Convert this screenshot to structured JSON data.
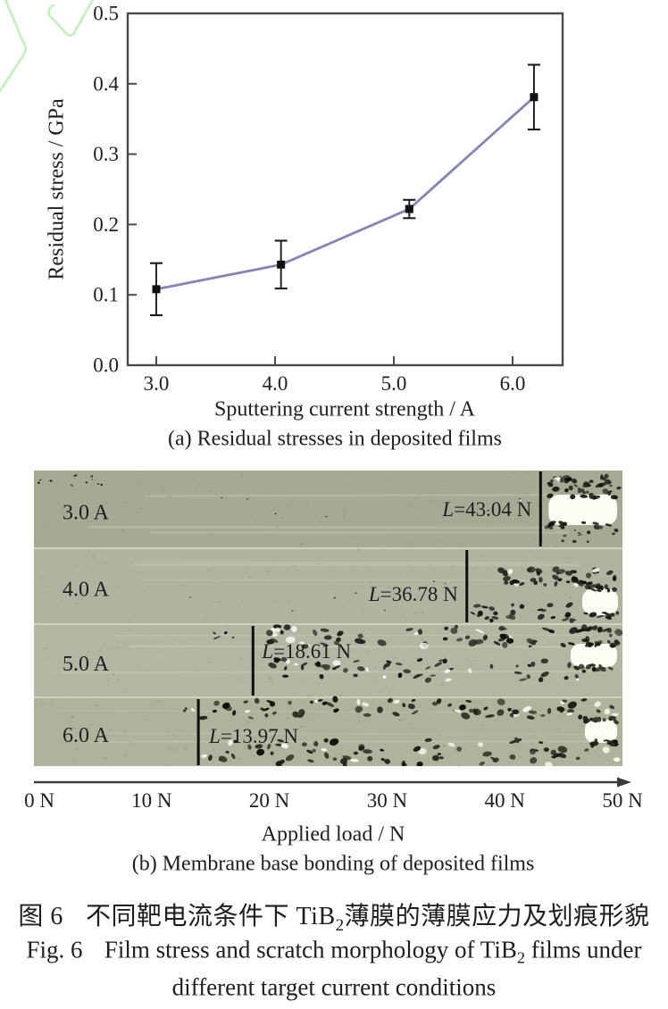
{
  "figure": {
    "watermark_color": "#c9efc3",
    "caption_cn": {
      "fig_label": "图 6",
      "before_sub": "不同靶电流条件下 TiB",
      "subscript": "2",
      "after_sub": "薄膜的薄膜应力及划痕形貌"
    },
    "caption_en": {
      "fig_label": "Fig. 6",
      "line1_before": "Film stress and scratch morphology of TiB",
      "subscript": "2",
      "line1_after": " films under",
      "line2": "different target current conditions"
    }
  },
  "chart_data": [
    {
      "type": "line",
      "title": "",
      "xlabel": "Sputtering current strength / A",
      "ylabel": "Residual stress / GPa",
      "caption": "(a) Residual stresses in deposited films",
      "x_ticks": [
        3.0,
        4.0,
        5.0,
        6.0
      ],
      "y_ticks": [
        0.0,
        0.1,
        0.2,
        0.3,
        0.4,
        0.5
      ],
      "xlim": [
        2.76,
        6.42
      ],
      "ylim": [
        0.0,
        0.5
      ],
      "grid": false,
      "legend": "none",
      "line_color": "#8585b3",
      "marker_color": "#101010",
      "series": [
        {
          "name": "residual stress",
          "x": [
            3.0,
            4.05,
            5.13,
            6.18
          ],
          "y": [
            0.108,
            0.143,
            0.222,
            0.381
          ],
          "yerr": [
            0.037,
            0.034,
            0.013,
            0.046
          ]
        }
      ]
    },
    {
      "type": "annotated-image",
      "caption": "(b) Membrane base bonding of deposited films",
      "xlabel": "Applied load / N",
      "axis_range_N": [
        0,
        50
      ],
      "axis_ticks": [
        {
          "label": "0 N",
          "N": 0
        },
        {
          "label": "10 N",
          "N": 10
        },
        {
          "label": "20 N",
          "N": 20
        },
        {
          "label": "30 N",
          "N": 30
        },
        {
          "label": "40 N",
          "N": 40
        },
        {
          "label": "50 N",
          "N": 50
        }
      ],
      "row_colors": [
        "#a8a995",
        "#b1b2a0",
        "#b4b6a3",
        "#b0b29b"
      ],
      "gap_color": "#d0d1bf",
      "rows": [
        {
          "label": "3.0 A",
          "load_var": "L",
          "load_rest": "=43.04 N",
          "critical_load_N": 43.04
        },
        {
          "label": "4.0 A",
          "load_var": "L",
          "load_rest": "=36.78 N",
          "critical_load_N": 36.78
        },
        {
          "label": "5.0 A",
          "load_var": "L",
          "load_rest": "=18.61 N",
          "critical_load_N": 18.61
        },
        {
          "label": "6.0 A",
          "load_var": "L",
          "load_rest": "=13.97 N",
          "critical_load_N": 13.97
        }
      ]
    }
  ]
}
